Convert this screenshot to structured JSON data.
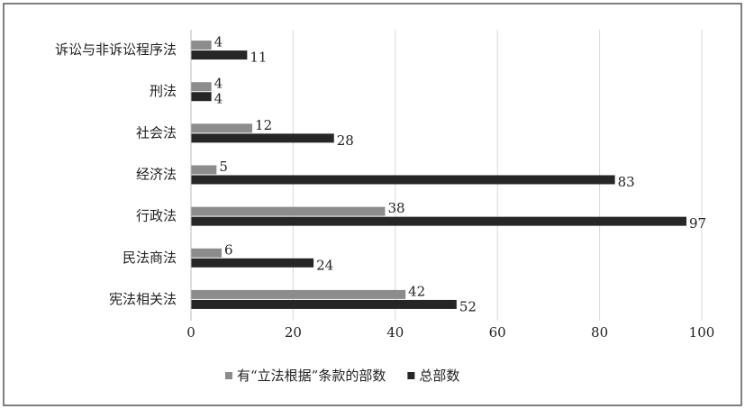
{
  "chart_data": {
    "type": "hbar",
    "categories": [
      "诉讼与非诉讼程序法",
      "刑法",
      "社会法",
      "经济法",
      "行政法",
      "民法商法",
      "宪法相关法"
    ],
    "series": [
      {
        "name": "有“立法根据”条款的部数",
        "color": "#8c8c8c",
        "values": [
          4,
          4,
          12,
          5,
          38,
          6,
          42
        ]
      },
      {
        "name": "总部数",
        "color": "#262626",
        "values": [
          11,
          4,
          28,
          83,
          97,
          24,
          52
        ]
      }
    ],
    "xlim": [
      0,
      100
    ],
    "xticks": [
      0,
      20,
      40,
      60,
      80,
      100
    ],
    "grid": true,
    "legend": "bottom"
  }
}
